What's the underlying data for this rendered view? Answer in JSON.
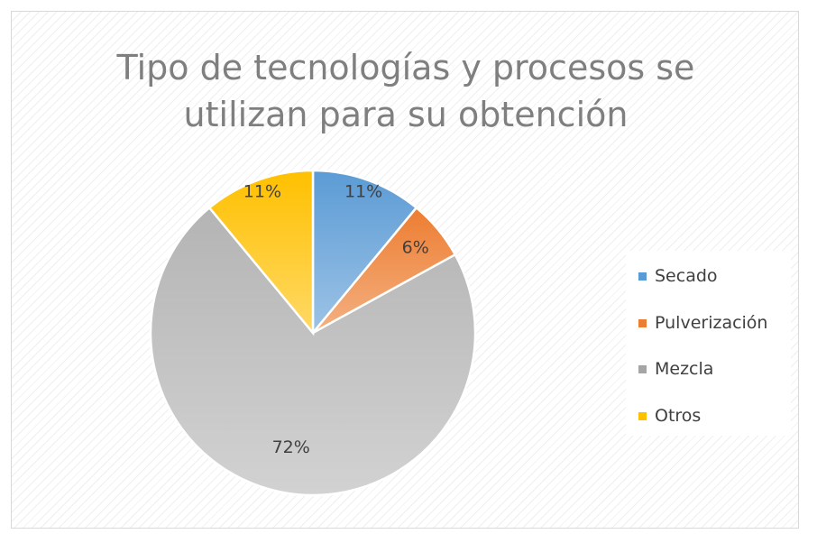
{
  "chart_data": {
    "type": "pie",
    "title": "Tipo de tecnologías y procesos se utilizan para su obtención",
    "title_lines": [
      "Tipo de tecnologías y procesos se",
      "utilizan para su obtención"
    ],
    "categories": [
      "Secado",
      "Pulverización",
      "Mezcla",
      "Otros"
    ],
    "values": [
      11,
      6,
      72,
      11
    ],
    "labels": [
      "11%",
      "6%",
      "72%",
      "11%"
    ],
    "colors": [
      "#6fa8dc",
      "#f0a068",
      "#c0c0c0",
      "#ffc83a"
    ],
    "legend_position": "right"
  }
}
